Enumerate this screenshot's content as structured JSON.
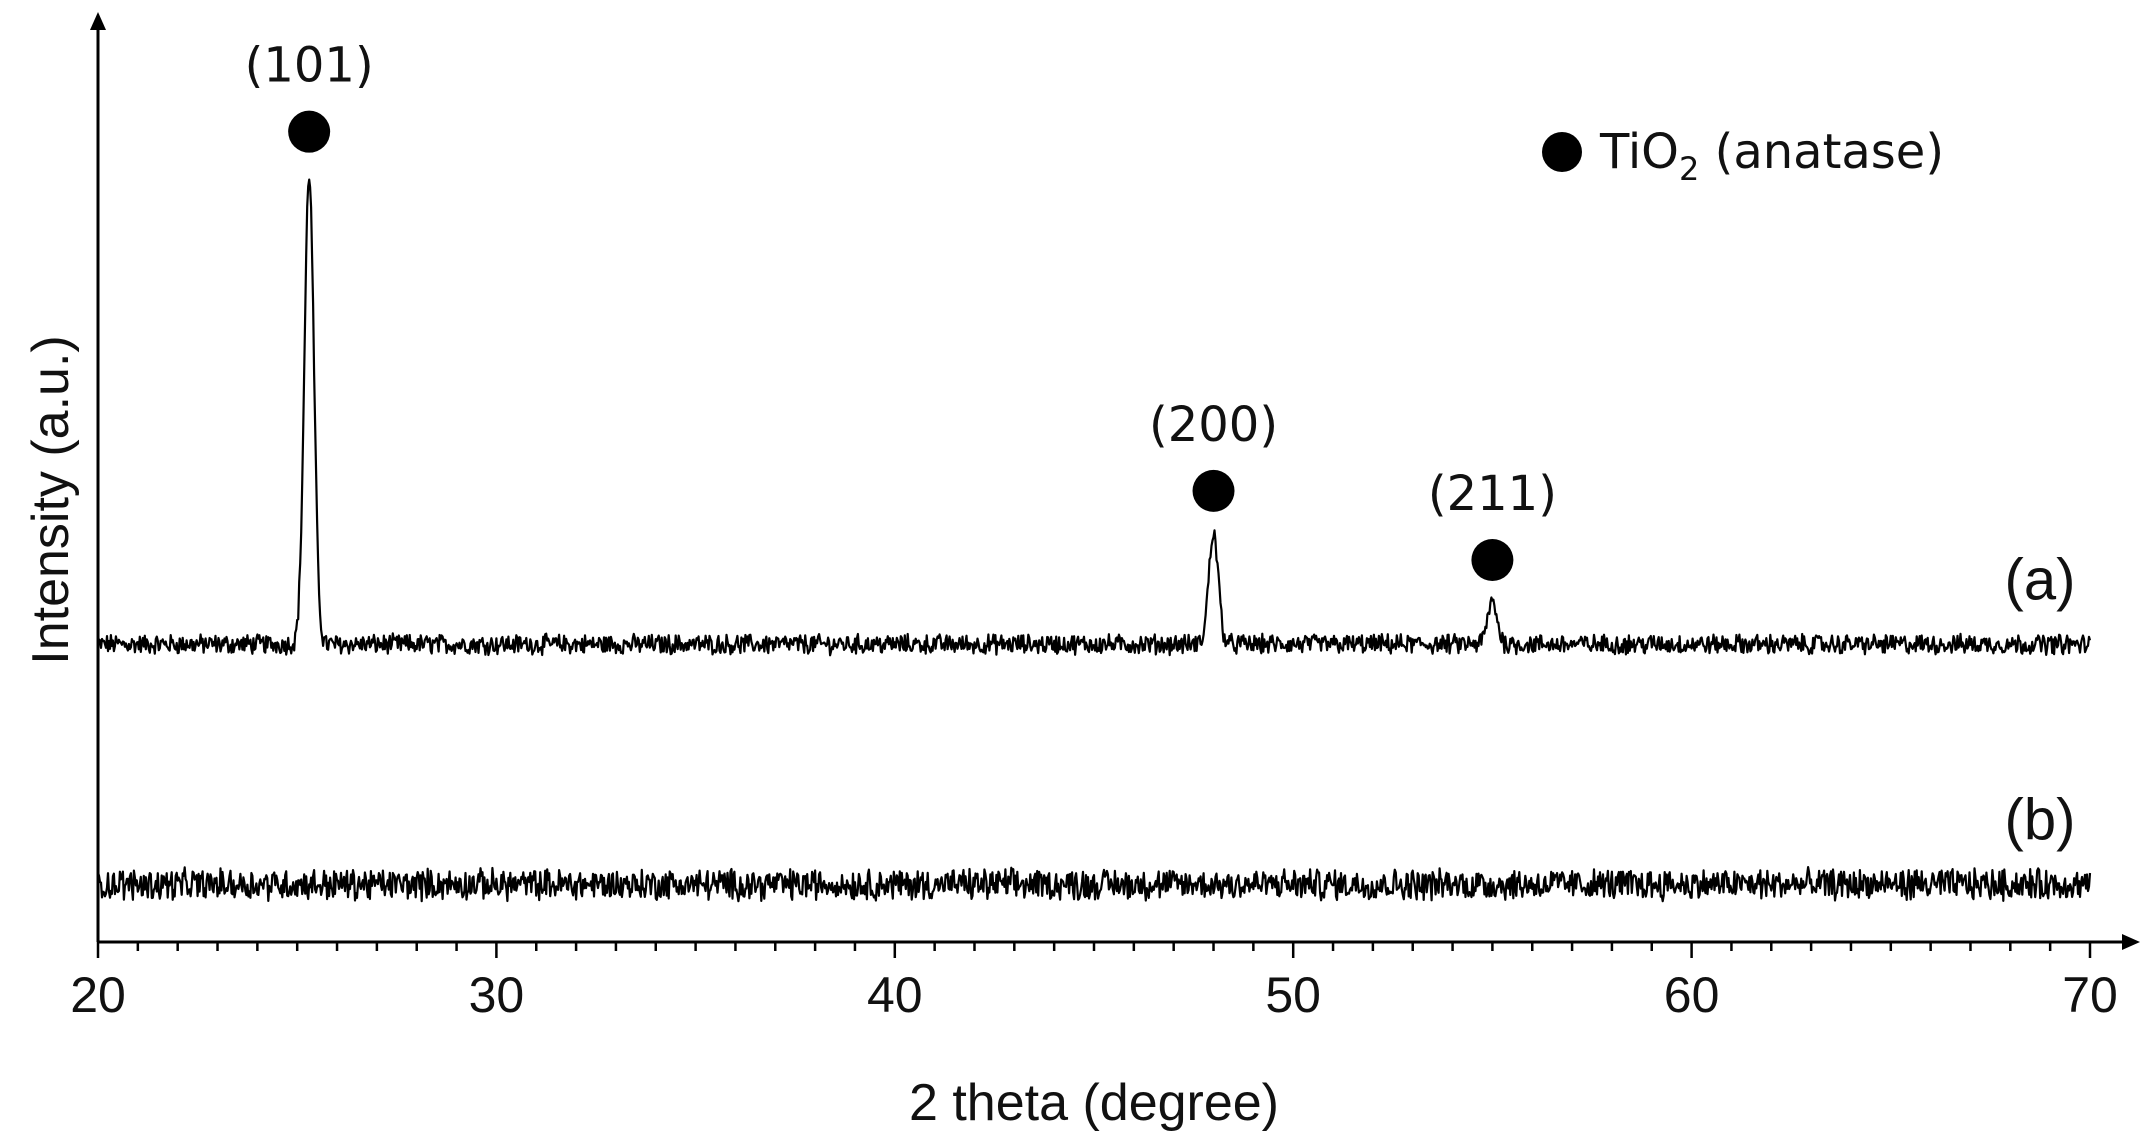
{
  "chart_data": {
    "type": "line",
    "xlabel": "2 theta (degree)",
    "ylabel": "Intensity (a.u.)",
    "xlim": [
      20,
      70
    ],
    "xticks": [
      20,
      30,
      40,
      50,
      60,
      70
    ],
    "ylim": [
      -0.3,
      4.5
    ],
    "yticks_shown": false,
    "legend": {
      "marker": "filled-circle",
      "text_main": "TiO",
      "text_sub": "2",
      "text_tail": " (anatase)",
      "placement": "top-right"
    },
    "series": [
      {
        "name": "(a)",
        "baseline": 1.25,
        "noise": 0.045,
        "peaks": [
          {
            "x": 25.3,
            "height": 2.45,
            "label": "(101)"
          },
          {
            "x": 48.0,
            "height": 0.58,
            "label": "(200)"
          },
          {
            "x": 55.0,
            "height": 0.22,
            "label": "(211)"
          }
        ]
      },
      {
        "name": "(b)",
        "baseline": 0.0,
        "noise": 0.07,
        "peaks": []
      }
    ]
  }
}
